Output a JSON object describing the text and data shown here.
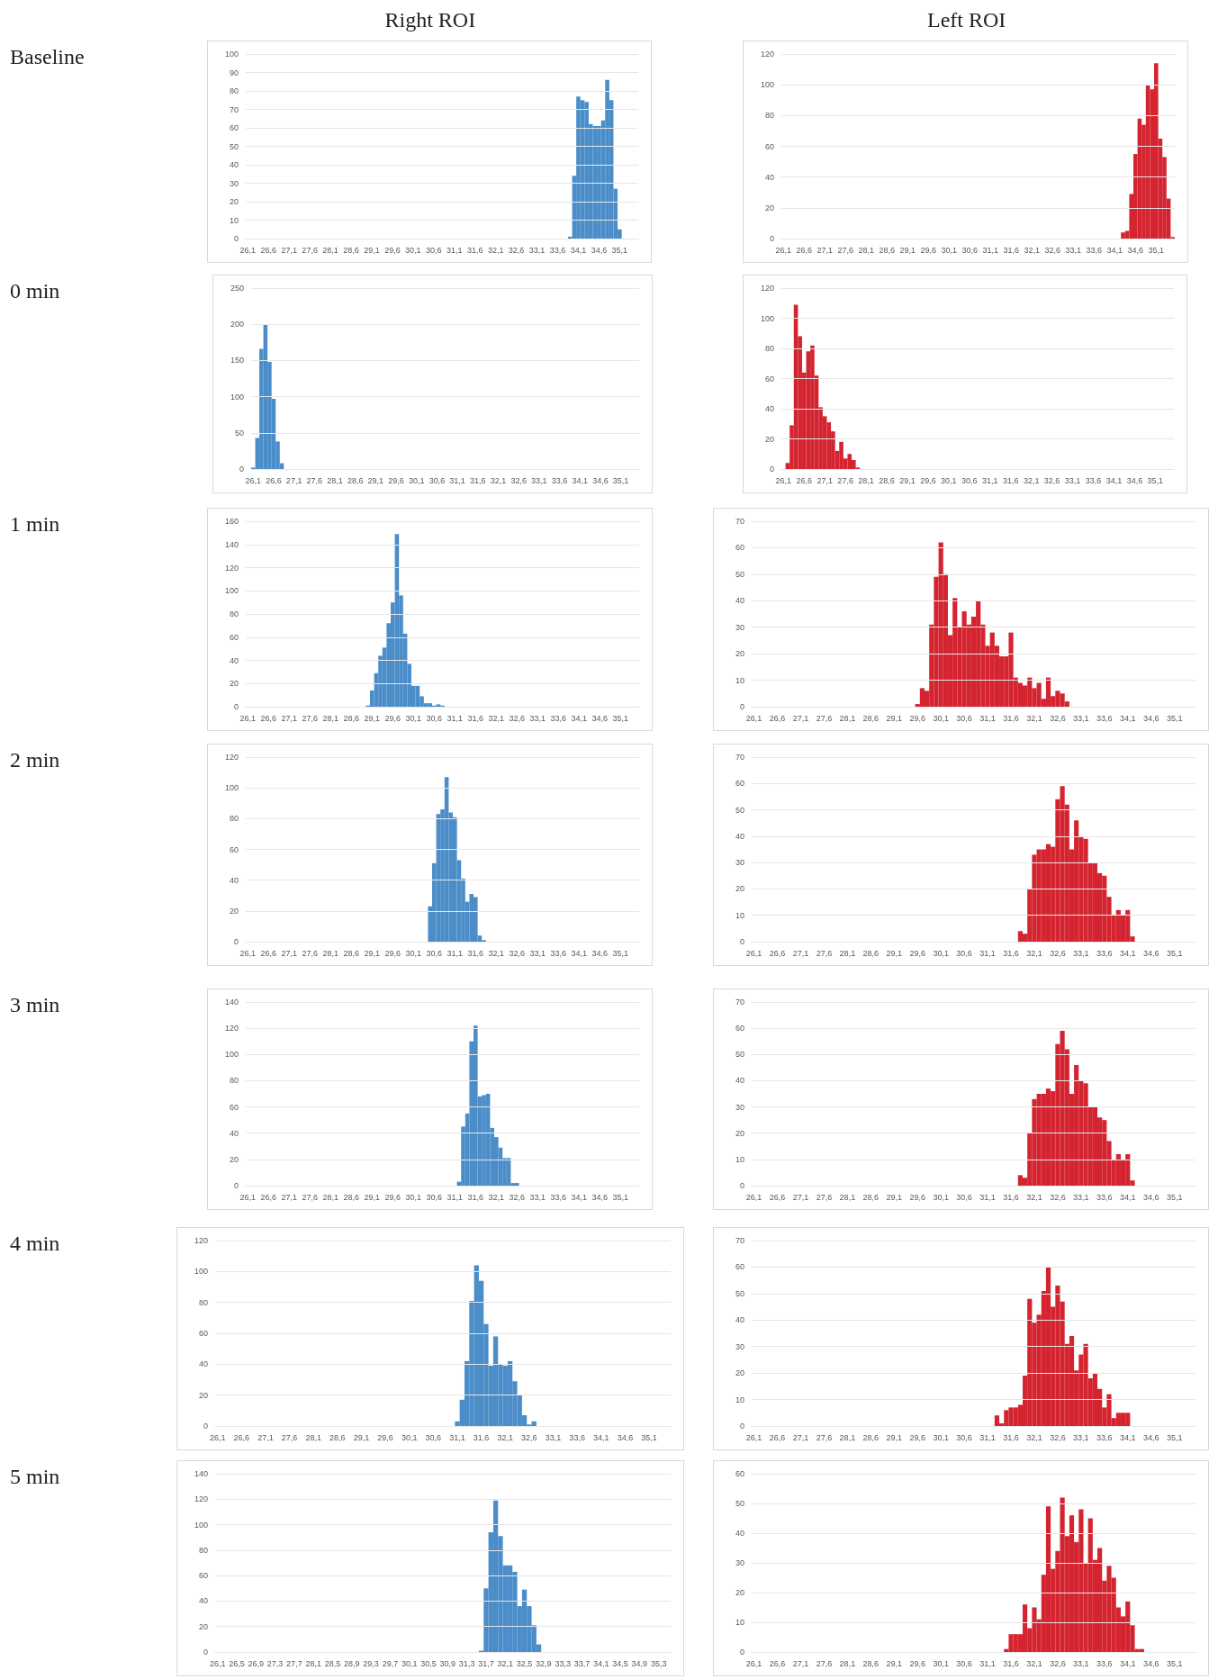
{
  "chart_data": [
    {
      "type": "bar",
      "title": "Right ROI",
      "annotations": [
        "Baseline"
      ],
      "color": "#4a8dc8",
      "grid": "y",
      "ylim": [
        0,
        100
      ],
      "yticks": [
        0,
        10,
        20,
        30,
        40,
        50,
        60,
        70,
        80,
        90,
        100
      ],
      "categories": [
        "26,1",
        null,
        null,
        null,
        null,
        "26,6",
        null,
        null,
        null,
        null,
        "27,1",
        null,
        null,
        null,
        null,
        "27,6",
        null,
        null,
        null,
        null,
        "28,1",
        null,
        null,
        null,
        null,
        "28,6",
        null,
        null,
        null,
        null,
        "29,1",
        null,
        null,
        null,
        null,
        "29,6",
        null,
        null,
        null,
        null,
        "30,1",
        null,
        null,
        null,
        null,
        "30,6",
        null,
        null,
        null,
        null,
        "31,1",
        null,
        null,
        null,
        null,
        "31,6",
        null,
        null,
        null,
        null,
        "32,1",
        null,
        null,
        null,
        null,
        "32,6",
        null,
        null,
        null,
        null,
        "33,1",
        null,
        null,
        null,
        null,
        "33,6",
        null,
        null,
        null,
        null,
        "34,1",
        null,
        null,
        null,
        null,
        "34,6",
        null,
        null,
        null,
        null,
        "35,1",
        null,
        null,
        null,
        null
      ],
      "values": [
        0,
        0,
        0,
        0,
        0,
        0,
        0,
        0,
        0,
        0,
        0,
        0,
        0,
        0,
        0,
        0,
        0,
        0,
        0,
        0,
        0,
        0,
        0,
        0,
        0,
        0,
        0,
        0,
        0,
        0,
        0,
        0,
        0,
        0,
        0,
        0,
        0,
        0,
        0,
        0,
        0,
        0,
        0,
        0,
        0,
        0,
        0,
        0,
        0,
        0,
        0,
        0,
        0,
        0,
        0,
        0,
        0,
        0,
        0,
        0,
        0,
        0,
        0,
        0,
        0,
        0,
        0,
        0,
        0,
        0,
        0,
        0,
        0,
        0,
        0,
        0,
        0,
        0,
        1,
        34,
        77,
        75,
        74,
        62,
        61,
        61,
        64,
        86,
        75,
        27,
        5,
        0,
        0,
        0,
        0
      ]
    },
    {
      "type": "bar",
      "title": "Left ROI",
      "color": "#d42430",
      "grid": "y",
      "ylim": [
        0,
        120
      ],
      "yticks": [
        0,
        20,
        40,
        60,
        80,
        100,
        120
      ],
      "categories": [
        "26,1",
        null,
        null,
        null,
        null,
        "26,6",
        null,
        null,
        null,
        null,
        "27,1",
        null,
        null,
        null,
        null,
        "27,6",
        null,
        null,
        null,
        null,
        "28,1",
        null,
        null,
        null,
        null,
        "28,6",
        null,
        null,
        null,
        null,
        "29,1",
        null,
        null,
        null,
        null,
        "29,6",
        null,
        null,
        null,
        null,
        "30,1",
        null,
        null,
        null,
        null,
        "30,6",
        null,
        null,
        null,
        null,
        "31,1",
        null,
        null,
        null,
        null,
        "31,6",
        null,
        null,
        null,
        null,
        "32,1",
        null,
        null,
        null,
        null,
        "32,6",
        null,
        null,
        null,
        null,
        "33,1",
        null,
        null,
        null,
        null,
        "33,6",
        null,
        null,
        null,
        null,
        "34,1",
        null,
        null,
        null,
        null,
        "34,6",
        null,
        null,
        null,
        null,
        "35,1",
        null,
        null,
        null,
        null
      ],
      "values": [
        0,
        0,
        0,
        0,
        0,
        0,
        0,
        0,
        0,
        0,
        0,
        0,
        0,
        0,
        0,
        0,
        0,
        0,
        0,
        0,
        0,
        0,
        0,
        0,
        0,
        0,
        0,
        0,
        0,
        0,
        0,
        0,
        0,
        0,
        0,
        0,
        0,
        0,
        0,
        0,
        0,
        0,
        0,
        0,
        0,
        0,
        0,
        0,
        0,
        0,
        0,
        0,
        0,
        0,
        0,
        0,
        0,
        0,
        0,
        0,
        0,
        0,
        0,
        0,
        0,
        0,
        0,
        0,
        0,
        0,
        0,
        0,
        0,
        0,
        0,
        0,
        0,
        0,
        0,
        0,
        0,
        0,
        4,
        5,
        29,
        55,
        78,
        74,
        100,
        97,
        114,
        65,
        53,
        26,
        1
      ]
    },
    {
      "type": "bar",
      "annotations": [
        "0 min"
      ],
      "color": "#4a8dc8",
      "grid": "y",
      "ylim": [
        0,
        250
      ],
      "yticks": [
        0,
        50,
        100,
        150,
        200,
        250
      ],
      "categories": [
        "26,1",
        null,
        null,
        null,
        null,
        "26,6",
        null,
        null,
        null,
        null,
        "27,1",
        null,
        null,
        null,
        null,
        "27,6",
        null,
        null,
        null,
        null,
        "28,1",
        null,
        null,
        null,
        null,
        "28,6",
        null,
        null,
        null,
        null,
        "29,1",
        null,
        null,
        null,
        null,
        "29,6",
        null,
        null,
        null,
        null,
        "30,1",
        null,
        null,
        null,
        null,
        "30,6",
        null,
        null,
        null,
        null,
        "31,1",
        null,
        null,
        null,
        null,
        "31,6",
        null,
        null,
        null,
        null,
        "32,1",
        null,
        null,
        null,
        null,
        "32,6",
        null,
        null,
        null,
        null,
        "33,1",
        null,
        null,
        null,
        null,
        "33,6",
        null,
        null,
        null,
        null,
        "34,1",
        null,
        null,
        null,
        null,
        "34,6",
        null,
        null,
        null,
        null,
        "35,1",
        null,
        null,
        null,
        null
      ],
      "values": [
        2,
        43,
        166,
        200,
        148,
        97,
        38,
        8,
        0,
        0,
        0,
        0,
        0,
        0,
        0,
        0,
        0,
        0,
        0,
        0,
        0,
        0,
        0,
        0,
        0,
        0,
        0,
        0,
        0,
        0,
        0,
        0,
        0,
        0,
        0,
        0,
        0,
        0,
        0,
        0,
        0,
        0,
        0,
        0,
        0,
        0,
        0,
        0,
        0,
        0,
        0,
        0,
        0,
        0,
        0,
        0,
        0,
        0,
        0,
        0,
        0,
        0,
        0,
        0,
        0,
        0,
        0,
        0,
        0,
        0,
        0,
        0,
        0,
        0,
        0,
        0,
        0,
        0,
        0,
        0,
        0,
        0,
        0,
        0,
        0,
        0,
        0,
        0,
        0,
        0,
        0,
        0,
        0,
        0,
        0
      ]
    },
    {
      "type": "bar",
      "color": "#d42430",
      "grid": "y",
      "ylim": [
        0,
        120
      ],
      "yticks": [
        0,
        20,
        40,
        60,
        80,
        100,
        120
      ],
      "categories": [
        "26,1",
        null,
        null,
        null,
        null,
        "26,6",
        null,
        null,
        null,
        null,
        "27,1",
        null,
        null,
        null,
        null,
        "27,6",
        null,
        null,
        null,
        null,
        "28,1",
        null,
        null,
        null,
        null,
        "28,6",
        null,
        null,
        null,
        null,
        "29,1",
        null,
        null,
        null,
        null,
        "29,6",
        null,
        null,
        null,
        null,
        "30,1",
        null,
        null,
        null,
        null,
        "30,6",
        null,
        null,
        null,
        null,
        "31,1",
        null,
        null,
        null,
        null,
        "31,6",
        null,
        null,
        null,
        null,
        "32,1",
        null,
        null,
        null,
        null,
        "32,6",
        null,
        null,
        null,
        null,
        "33,1",
        null,
        null,
        null,
        null,
        "33,6",
        null,
        null,
        null,
        null,
        "34,1",
        null,
        null,
        null,
        null,
        "34,6",
        null,
        null,
        null,
        null,
        "35,1",
        null,
        null,
        null,
        null
      ],
      "values": [
        0,
        4,
        29,
        109,
        88,
        64,
        78,
        82,
        62,
        41,
        35,
        31,
        25,
        12,
        18,
        7,
        10,
        6,
        1,
        0,
        0,
        0,
        0,
        0,
        0,
        0,
        0,
        0,
        0,
        0,
        0,
        0,
        0,
        0,
        0,
        0,
        0,
        0,
        0,
        0,
        0,
        0,
        0,
        0,
        0,
        0,
        0,
        0,
        0,
        0,
        0,
        0,
        0,
        0,
        0,
        0,
        0,
        0,
        0,
        0,
        0,
        0,
        0,
        0,
        0,
        0,
        0,
        0,
        0,
        0,
        0,
        0,
        0,
        0,
        0,
        0,
        0,
        0,
        0,
        0,
        0,
        0,
        0,
        0,
        0,
        0,
        0,
        0,
        0,
        0,
        0,
        0,
        0,
        0,
        0
      ]
    },
    {
      "type": "bar",
      "annotations": [
        "1 min"
      ],
      "color": "#4a8dc8",
      "grid": "y",
      "ylim": [
        0,
        160
      ],
      "yticks": [
        0,
        20,
        40,
        60,
        80,
        100,
        120,
        140,
        160
      ],
      "categories": [
        "26,1",
        null,
        null,
        null,
        null,
        "26,6",
        null,
        null,
        null,
        null,
        "27,1",
        null,
        null,
        null,
        null,
        "27,6",
        null,
        null,
        null,
        null,
        "28,1",
        null,
        null,
        null,
        null,
        "28,6",
        null,
        null,
        null,
        null,
        "29,1",
        null,
        null,
        null,
        null,
        "29,6",
        null,
        null,
        null,
        null,
        "30,1",
        null,
        null,
        null,
        null,
        "30,6",
        null,
        null,
        null,
        null,
        "31,1",
        null,
        null,
        null,
        null,
        "31,6",
        null,
        null,
        null,
        null,
        "32,1",
        null,
        null,
        null,
        null,
        "32,6",
        null,
        null,
        null,
        null,
        "33,1",
        null,
        null,
        null,
        null,
        "33,6",
        null,
        null,
        null,
        null,
        "34,1",
        null,
        null,
        null,
        null,
        "34,6",
        null,
        null,
        null,
        null,
        "35,1",
        null,
        null,
        null,
        null
      ],
      "values": [
        0,
        0,
        0,
        0,
        0,
        0,
        0,
        0,
        0,
        0,
        0,
        0,
        0,
        0,
        0,
        0,
        0,
        0,
        0,
        0,
        0,
        0,
        0,
        0,
        0,
        0,
        0,
        0,
        0,
        1,
        14,
        29,
        44,
        51,
        72,
        90,
        149,
        96,
        63,
        37,
        18,
        18,
        9,
        3,
        3,
        1,
        2,
        1,
        0,
        0,
        0,
        0,
        0,
        0,
        0,
        0,
        0,
        0,
        0,
        0,
        0,
        0,
        0,
        0,
        0,
        0,
        0,
        0,
        0,
        0,
        0,
        0,
        0,
        0,
        0,
        0,
        0,
        0,
        0,
        0,
        0,
        0,
        0,
        0,
        0,
        0,
        0,
        0,
        0,
        0,
        0,
        0,
        0,
        0,
        0
      ]
    },
    {
      "type": "bar",
      "color": "#d42430",
      "grid": "y",
      "ylim": [
        0,
        70
      ],
      "yticks": [
        0,
        10,
        20,
        30,
        40,
        50,
        60,
        70
      ],
      "categories": [
        "26,1",
        null,
        null,
        null,
        null,
        "26,6",
        null,
        null,
        null,
        null,
        "27,1",
        null,
        null,
        null,
        null,
        "27,6",
        null,
        null,
        null,
        null,
        "28,1",
        null,
        null,
        null,
        null,
        "28,6",
        null,
        null,
        null,
        null,
        "29,1",
        null,
        null,
        null,
        null,
        "29,6",
        null,
        null,
        null,
        null,
        "30,1",
        null,
        null,
        null,
        null,
        "30,6",
        null,
        null,
        null,
        null,
        "31,1",
        null,
        null,
        null,
        null,
        "31,6",
        null,
        null,
        null,
        null,
        "32,1",
        null,
        null,
        null,
        null,
        "32,6",
        null,
        null,
        null,
        null,
        "33,1",
        null,
        null,
        null,
        null,
        "33,6",
        null,
        null,
        null,
        null,
        "34,1",
        null,
        null,
        null,
        null,
        "34,6",
        null,
        null,
        null,
        null,
        "35,1",
        null,
        null,
        null,
        null
      ],
      "values": [
        0,
        0,
        0,
        0,
        0,
        0,
        0,
        0,
        0,
        0,
        0,
        0,
        0,
        0,
        0,
        0,
        0,
        0,
        0,
        0,
        0,
        0,
        0,
        0,
        0,
        0,
        0,
        0,
        0,
        0,
        0,
        0,
        0,
        0,
        0,
        1,
        7,
        6,
        31,
        49,
        62,
        50,
        27,
        41,
        30,
        36,
        31,
        34,
        40,
        31,
        23,
        28,
        23,
        19,
        19,
        28,
        11,
        9,
        8,
        11,
        7,
        9,
        3,
        11,
        4,
        6,
        5,
        2,
        0,
        0,
        0,
        0,
        0,
        0,
        0,
        0,
        0,
        0,
        0,
        0,
        0,
        0,
        0,
        0,
        0,
        0,
        0,
        0,
        0,
        0,
        0,
        0,
        0,
        0,
        0
      ]
    },
    {
      "type": "bar",
      "annotations": [
        "2 min"
      ],
      "color": "#4a8dc8",
      "grid": "y",
      "ylim": [
        0,
        120
      ],
      "yticks": [
        0,
        20,
        40,
        60,
        80,
        100,
        120
      ],
      "categories": [
        "26,1",
        null,
        null,
        null,
        null,
        "26,6",
        null,
        null,
        null,
        null,
        "27,1",
        null,
        null,
        null,
        null,
        "27,6",
        null,
        null,
        null,
        null,
        "28,1",
        null,
        null,
        null,
        null,
        "28,6",
        null,
        null,
        null,
        null,
        "29,1",
        null,
        null,
        null,
        null,
        "29,6",
        null,
        null,
        null,
        null,
        "30,1",
        null,
        null,
        null,
        null,
        "30,6",
        null,
        null,
        null,
        null,
        "31,1",
        null,
        null,
        null,
        null,
        "31,6",
        null,
        null,
        null,
        null,
        "32,1",
        null,
        null,
        null,
        null,
        "32,6",
        null,
        null,
        null,
        null,
        "33,1",
        null,
        null,
        null,
        null,
        "33,6",
        null,
        null,
        null,
        null,
        "34,1",
        null,
        null,
        null,
        null,
        "34,6",
        null,
        null,
        null,
        null,
        "35,1",
        null,
        null,
        null,
        null
      ],
      "values": [
        0,
        0,
        0,
        0,
        0,
        0,
        0,
        0,
        0,
        0,
        0,
        0,
        0,
        0,
        0,
        0,
        0,
        0,
        0,
        0,
        0,
        0,
        0,
        0,
        0,
        0,
        0,
        0,
        0,
        0,
        0,
        0,
        0,
        0,
        0,
        0,
        0,
        0,
        0,
        0,
        0,
        0,
        0,
        0,
        23,
        51,
        83,
        86,
        107,
        84,
        81,
        53,
        41,
        26,
        31,
        29,
        4,
        1,
        0,
        0,
        0,
        0,
        0,
        0,
        0,
        0,
        0,
        0,
        0,
        0,
        0,
        0,
        0,
        0,
        0,
        0,
        0,
        0,
        0,
        0,
        0,
        0,
        0,
        0,
        0,
        0,
        0,
        0,
        0,
        0,
        0,
        0,
        0,
        0,
        0
      ]
    },
    {
      "type": "bar",
      "color": "#d42430",
      "grid": "y",
      "ylim": [
        0,
        70
      ],
      "yticks": [
        0,
        10,
        20,
        30,
        40,
        50,
        60,
        70
      ],
      "categories": [
        "26,1",
        null,
        null,
        null,
        null,
        "26,6",
        null,
        null,
        null,
        null,
        "27,1",
        null,
        null,
        null,
        null,
        "27,6",
        null,
        null,
        null,
        null,
        "28,1",
        null,
        null,
        null,
        null,
        "28,6",
        null,
        null,
        null,
        null,
        "29,1",
        null,
        null,
        null,
        null,
        "29,6",
        null,
        null,
        null,
        null,
        "30,1",
        null,
        null,
        null,
        null,
        "30,6",
        null,
        null,
        null,
        null,
        "31,1",
        null,
        null,
        null,
        null,
        "31,6",
        null,
        null,
        null,
        null,
        "32,1",
        null,
        null,
        null,
        null,
        "32,6",
        null,
        null,
        null,
        null,
        "33,1",
        null,
        null,
        null,
        null,
        "33,6",
        null,
        null,
        null,
        null,
        "34,1",
        null,
        null,
        null,
        null,
        "34,6",
        null,
        null,
        null,
        null,
        "35,1",
        null,
        null,
        null,
        null
      ],
      "values": [
        0,
        0,
        0,
        0,
        0,
        0,
        0,
        0,
        0,
        0,
        0,
        0,
        0,
        0,
        0,
        0,
        0,
        0,
        0,
        0,
        0,
        0,
        0,
        0,
        0,
        0,
        0,
        0,
        0,
        0,
        0,
        0,
        0,
        0,
        0,
        0,
        0,
        0,
        0,
        0,
        0,
        0,
        0,
        0,
        0,
        0,
        0,
        0,
        0,
        0,
        0,
        0,
        0,
        0,
        0,
        0,
        0,
        4,
        3,
        20,
        33,
        35,
        35,
        37,
        36,
        54,
        59,
        52,
        35,
        46,
        40,
        39,
        30,
        30,
        26,
        25,
        17,
        10,
        12,
        10,
        12,
        2,
        0,
        0,
        0,
        0,
        0,
        0,
        0,
        0,
        0,
        0,
        0,
        0,
        0
      ]
    },
    {
      "type": "bar",
      "annotations": [
        "3 min"
      ],
      "color": "#4a8dc8",
      "grid": "y",
      "ylim": [
        0,
        140
      ],
      "yticks": [
        0,
        20,
        40,
        60,
        80,
        100,
        120,
        140
      ],
      "categories": [
        "26,1",
        null,
        null,
        null,
        null,
        "26,6",
        null,
        null,
        null,
        null,
        "27,1",
        null,
        null,
        null,
        null,
        "27,6",
        null,
        null,
        null,
        null,
        "28,1",
        null,
        null,
        null,
        null,
        "28,6",
        null,
        null,
        null,
        null,
        "29,1",
        null,
        null,
        null,
        null,
        "29,6",
        null,
        null,
        null,
        null,
        "30,1",
        null,
        null,
        null,
        null,
        "30,6",
        null,
        null,
        null,
        null,
        "31,1",
        null,
        null,
        null,
        null,
        "31,6",
        null,
        null,
        null,
        null,
        "32,1",
        null,
        null,
        null,
        null,
        "32,6",
        null,
        null,
        null,
        null,
        "33,1",
        null,
        null,
        null,
        null,
        "33,6",
        null,
        null,
        null,
        null,
        "34,1",
        null,
        null,
        null,
        null,
        "34,6",
        null,
        null,
        null,
        null,
        "35,1",
        null,
        null,
        null,
        null
      ],
      "values": [
        0,
        0,
        0,
        0,
        0,
        0,
        0,
        0,
        0,
        0,
        0,
        0,
        0,
        0,
        0,
        0,
        0,
        0,
        0,
        0,
        0,
        0,
        0,
        0,
        0,
        0,
        0,
        0,
        0,
        0,
        0,
        0,
        0,
        0,
        0,
        0,
        0,
        0,
        0,
        0,
        0,
        0,
        0,
        0,
        0,
        0,
        0,
        0,
        0,
        0,
        0,
        3,
        45,
        55,
        110,
        122,
        68,
        69,
        70,
        44,
        37,
        29,
        21,
        21,
        2,
        2,
        0,
        0,
        0,
        0,
        0,
        0,
        0,
        0,
        0,
        0,
        0,
        0,
        0,
        0,
        0,
        0,
        0,
        0,
        0,
        0,
        0,
        0,
        0,
        0,
        0,
        0,
        0,
        0,
        0
      ]
    },
    {
      "type": "bar",
      "color": "#d42430",
      "grid": "y",
      "ylim": [
        0,
        70
      ],
      "yticks": [
        0,
        10,
        20,
        30,
        40,
        50,
        60,
        70
      ],
      "categories": [
        "26,1",
        null,
        null,
        null,
        null,
        "26,6",
        null,
        null,
        null,
        null,
        "27,1",
        null,
        null,
        null,
        null,
        "27,6",
        null,
        null,
        null,
        null,
        "28,1",
        null,
        null,
        null,
        null,
        "28,6",
        null,
        null,
        null,
        null,
        "29,1",
        null,
        null,
        null,
        null,
        "29,6",
        null,
        null,
        null,
        null,
        "30,1",
        null,
        null,
        null,
        null,
        "30,6",
        null,
        null,
        null,
        null,
        "31,1",
        null,
        null,
        null,
        null,
        "31,6",
        null,
        null,
        null,
        null,
        "32,1",
        null,
        null,
        null,
        null,
        "32,6",
        null,
        null,
        null,
        null,
        "33,1",
        null,
        null,
        null,
        null,
        "33,6",
        null,
        null,
        null,
        null,
        "34,1",
        null,
        null,
        null,
        null,
        "34,6",
        null,
        null,
        null,
        null,
        "35,1",
        null,
        null,
        null,
        null
      ],
      "values": [
        0,
        0,
        0,
        0,
        0,
        0,
        0,
        0,
        0,
        0,
        0,
        0,
        0,
        0,
        0,
        0,
        0,
        0,
        0,
        0,
        0,
        0,
        0,
        0,
        0,
        0,
        0,
        0,
        0,
        0,
        0,
        0,
        0,
        0,
        0,
        0,
        0,
        0,
        0,
        0,
        0,
        0,
        0,
        0,
        0,
        0,
        0,
        0,
        0,
        0,
        0,
        0,
        0,
        0,
        0,
        0,
        0,
        4,
        3,
        20,
        33,
        35,
        35,
        37,
        36,
        54,
        59,
        52,
        35,
        46,
        40,
        39,
        30,
        30,
        26,
        25,
        17,
        10,
        12,
        10,
        12,
        2,
        0,
        0,
        0,
        0,
        0,
        0,
        0,
        0,
        0,
        0,
        0,
        0,
        0
      ]
    },
    {
      "type": "bar",
      "annotations": [
        "4 min"
      ],
      "color": "#4a8dc8",
      "grid": "y",
      "ylim": [
        0,
        120
      ],
      "yticks": [
        0,
        20,
        40,
        60,
        80,
        100,
        120
      ],
      "categories": [
        "26,1",
        null,
        null,
        null,
        null,
        "26,6",
        null,
        null,
        null,
        null,
        "27,1",
        null,
        null,
        null,
        null,
        "27,6",
        null,
        null,
        null,
        null,
        "28,1",
        null,
        null,
        null,
        null,
        "28,6",
        null,
        null,
        null,
        null,
        "29,1",
        null,
        null,
        null,
        null,
        "29,6",
        null,
        null,
        null,
        null,
        "30,1",
        null,
        null,
        null,
        null,
        "30,6",
        null,
        null,
        null,
        null,
        "31,1",
        null,
        null,
        null,
        null,
        "31,6",
        null,
        null,
        null,
        null,
        "32,1",
        null,
        null,
        null,
        null,
        "32,6",
        null,
        null,
        null,
        null,
        "33,1",
        null,
        null,
        null,
        null,
        "33,6",
        null,
        null,
        null,
        null,
        "34,1",
        null,
        null,
        null,
        null,
        "34,6",
        null,
        null,
        null,
        null,
        "35,1",
        null,
        null,
        null,
        null
      ],
      "values": [
        0,
        0,
        0,
        0,
        0,
        0,
        0,
        0,
        0,
        0,
        0,
        0,
        0,
        0,
        0,
        0,
        0,
        0,
        0,
        0,
        0,
        0,
        0,
        0,
        0,
        0,
        0,
        0,
        0,
        0,
        0,
        0,
        0,
        0,
        0,
        0,
        0,
        0,
        0,
        0,
        0,
        0,
        0,
        0,
        0,
        0,
        0,
        0,
        0,
        0,
        3,
        17,
        42,
        81,
        104,
        94,
        66,
        39,
        58,
        40,
        39,
        42,
        29,
        20,
        7,
        1,
        3,
        0,
        0,
        0,
        0,
        0,
        0,
        0,
        0,
        0,
        0,
        0,
        0,
        0,
        0,
        0,
        0,
        0,
        0,
        0,
        0,
        0,
        0,
        0,
        0,
        0,
        0,
        0,
        0
      ]
    },
    {
      "type": "bar",
      "color": "#d42430",
      "grid": "y",
      "ylim": [
        0,
        70
      ],
      "yticks": [
        0,
        10,
        20,
        30,
        40,
        50,
        60,
        70
      ],
      "categories": [
        "26,1",
        null,
        null,
        null,
        null,
        "26,6",
        null,
        null,
        null,
        null,
        "27,1",
        null,
        null,
        null,
        null,
        "27,6",
        null,
        null,
        null,
        null,
        "28,1",
        null,
        null,
        null,
        null,
        "28,6",
        null,
        null,
        null,
        null,
        "29,1",
        null,
        null,
        null,
        null,
        "29,6",
        null,
        null,
        null,
        null,
        "30,1",
        null,
        null,
        null,
        null,
        "30,6",
        null,
        null,
        null,
        null,
        "31,1",
        null,
        null,
        null,
        null,
        "31,6",
        null,
        null,
        null,
        null,
        "32,1",
        null,
        null,
        null,
        null,
        "32,6",
        null,
        null,
        null,
        null,
        "33,1",
        null,
        null,
        null,
        null,
        "33,6",
        null,
        null,
        null,
        null,
        "34,1",
        null,
        null,
        null,
        null,
        "34,6",
        null,
        null,
        null,
        null,
        "35,1",
        null,
        null,
        null,
        null
      ],
      "values": [
        0,
        0,
        0,
        0,
        0,
        0,
        0,
        0,
        0,
        0,
        0,
        0,
        0,
        0,
        0,
        0,
        0,
        0,
        0,
        0,
        0,
        0,
        0,
        0,
        0,
        0,
        0,
        0,
        0,
        0,
        0,
        0,
        0,
        0,
        0,
        0,
        0,
        0,
        0,
        0,
        0,
        0,
        0,
        0,
        0,
        0,
        0,
        0,
        0,
        0,
        0,
        0,
        4,
        1,
        6,
        7,
        7,
        8,
        19,
        48,
        39,
        42,
        51,
        60,
        45,
        53,
        47,
        31,
        34,
        21,
        27,
        31,
        18,
        20,
        14,
        7,
        12,
        3,
        5,
        5,
        5,
        0,
        0,
        0,
        0,
        0,
        0,
        0,
        0,
        0,
        0,
        0,
        0,
        0,
        0
      ]
    },
    {
      "type": "bar",
      "annotations": [
        "5 min"
      ],
      "color": "#4a8dc8",
      "grid": "y",
      "ylim": [
        0,
        140
      ],
      "yticks": [
        0,
        20,
        40,
        60,
        80,
        100,
        120,
        140
      ],
      "categories": [
        "26,1",
        null,
        null,
        null,
        "26,5",
        null,
        null,
        null,
        "26,9",
        null,
        null,
        null,
        "27,3",
        null,
        null,
        null,
        "27,7",
        null,
        null,
        null,
        "28,1",
        null,
        null,
        null,
        "28,5",
        null,
        null,
        null,
        "28,9",
        null,
        null,
        null,
        "29,3",
        null,
        null,
        null,
        "29,7",
        null,
        null,
        null,
        "30,1",
        null,
        null,
        null,
        "30,5",
        null,
        null,
        null,
        "30,9",
        null,
        null,
        null,
        "31,3",
        null,
        null,
        null,
        "31,7",
        null,
        null,
        null,
        "32,1",
        null,
        null,
        null,
        "32,5",
        null,
        null,
        null,
        "32,9",
        null,
        null,
        null,
        "33,3",
        null,
        null,
        null,
        "33,7",
        null,
        null,
        null,
        "34,1",
        null,
        null,
        null,
        "34,5",
        null,
        null,
        null,
        "34,9",
        null,
        null,
        null,
        "35,3",
        null,
        null
      ],
      "values": [
        0,
        0,
        0,
        0,
        0,
        0,
        0,
        0,
        0,
        0,
        0,
        0,
        0,
        0,
        0,
        0,
        0,
        0,
        0,
        0,
        0,
        0,
        0,
        0,
        0,
        0,
        0,
        0,
        0,
        0,
        0,
        0,
        0,
        0,
        0,
        0,
        0,
        0,
        0,
        0,
        0,
        0,
        0,
        0,
        0,
        0,
        0,
        0,
        0,
        0,
        0,
        0,
        0,
        0,
        0,
        1,
        50,
        94,
        119,
        91,
        68,
        68,
        63,
        36,
        49,
        36,
        21,
        6,
        0,
        0,
        0,
        0,
        0,
        0,
        0,
        0,
        0,
        0,
        0,
        0,
        0,
        0,
        0,
        0,
        0,
        0,
        0,
        0,
        0,
        0,
        0,
        0,
        0,
        0,
        0
      ]
    },
    {
      "type": "bar",
      "color": "#d42430",
      "grid": "y",
      "ylim": [
        0,
        60
      ],
      "yticks": [
        0,
        10,
        20,
        30,
        40,
        50,
        60
      ],
      "categories": [
        "26,1",
        null,
        null,
        null,
        null,
        "26,6",
        null,
        null,
        null,
        null,
        "27,1",
        null,
        null,
        null,
        null,
        "27,6",
        null,
        null,
        null,
        null,
        "28,1",
        null,
        null,
        null,
        null,
        "28,6",
        null,
        null,
        null,
        null,
        "29,1",
        null,
        null,
        null,
        null,
        "29,6",
        null,
        null,
        null,
        null,
        "30,1",
        null,
        null,
        null,
        null,
        "30,6",
        null,
        null,
        null,
        null,
        "31,1",
        null,
        null,
        null,
        null,
        "31,6",
        null,
        null,
        null,
        null,
        "32,1",
        null,
        null,
        null,
        null,
        "32,6",
        null,
        null,
        null,
        null,
        "33,1",
        null,
        null,
        null,
        null,
        "33,6",
        null,
        null,
        null,
        null,
        "34,1",
        null,
        null,
        null,
        null,
        "34,6",
        null,
        null,
        null,
        null,
        "35,1",
        null,
        null,
        null,
        null
      ],
      "values": [
        0,
        0,
        0,
        0,
        0,
        0,
        0,
        0,
        0,
        0,
        0,
        0,
        0,
        0,
        0,
        0,
        0,
        0,
        0,
        0,
        0,
        0,
        0,
        0,
        0,
        0,
        0,
        0,
        0,
        0,
        0,
        0,
        0,
        0,
        0,
        0,
        0,
        0,
        0,
        0,
        0,
        0,
        0,
        0,
        0,
        0,
        0,
        0,
        0,
        0,
        0,
        0,
        0,
        0,
        1,
        6,
        6,
        6,
        16,
        8,
        15,
        11,
        26,
        49,
        28,
        34,
        52,
        39,
        46,
        37,
        48,
        30,
        45,
        31,
        35,
        24,
        29,
        25,
        15,
        12,
        17,
        9,
        1,
        1,
        0,
        0,
        0,
        0,
        0,
        0,
        0,
        0,
        0,
        0,
        0
      ]
    }
  ]
}
